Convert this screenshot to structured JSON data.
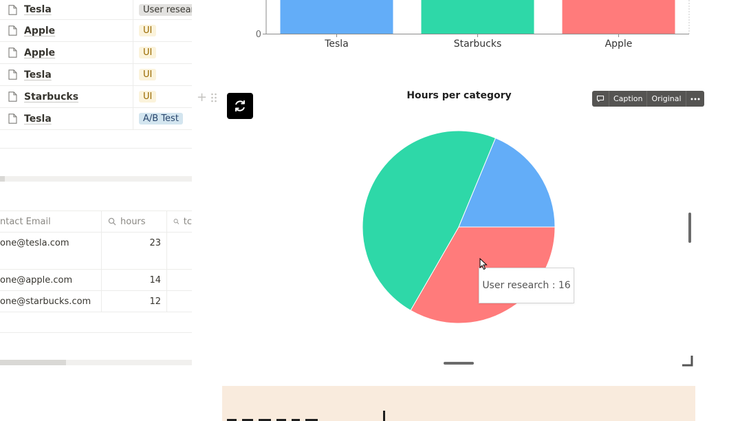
{
  "table1": {
    "rows": [
      {
        "name": "Tesla",
        "tag": "User research",
        "tag_color": "gray"
      },
      {
        "name": "Apple",
        "tag": "UI",
        "tag_color": "yellow"
      },
      {
        "name": "Apple",
        "tag": "UI",
        "tag_color": "yellow"
      },
      {
        "name": "Tesla",
        "tag": "UI",
        "tag_color": "yellow"
      },
      {
        "name": "Starbucks",
        "tag": "UI",
        "tag_color": "yellow"
      },
      {
        "name": "Tesla",
        "tag": "A/B Test",
        "tag_color": "blue"
      }
    ],
    "row_icon": "page-icon"
  },
  "table2": {
    "columns": [
      "ntact Email",
      "hours",
      "tc"
    ],
    "rows": [
      {
        "email": "one@tesla.com",
        "hours": "23"
      },
      {
        "email": "one@apple.com",
        "hours": "14"
      },
      {
        "email": "one@starbucks.com",
        "hours": "12"
      }
    ]
  },
  "block_controls": {
    "add_icon": "plus-icon",
    "drag_icon": "drag-handle-icon",
    "refresh_icon": "refresh-icon"
  },
  "chart_data": [
    {
      "type": "bar",
      "categories": [
        "Tesla",
        "Starbucks",
        "Apple"
      ],
      "y_tick_visible": "0",
      "colors": [
        "#63adf8",
        "#2ed8a8",
        "#ff7b7b"
      ]
    },
    {
      "type": "pie",
      "title": "Hours per category",
      "slices": [
        {
          "label": "User research",
          "value": 16,
          "color": "#ff7b7b"
        },
        {
          "label": "",
          "value": 23,
          "color": "#2ed8a8"
        },
        {
          "label": "",
          "value": 9,
          "color": "#63adf8"
        }
      ],
      "tooltip": "User research : 16"
    }
  ],
  "toolbar": {
    "comment_icon": "comment-icon",
    "caption": "Caption",
    "original": "Original",
    "more_icon": "more-icon"
  }
}
